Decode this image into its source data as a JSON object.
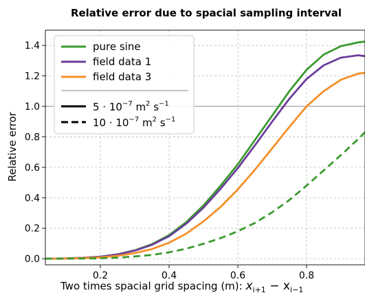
{
  "chart_data": {
    "type": "line",
    "title": "Relative error due to spacial sampling interval",
    "xlabel": "Two times spacial grid spacing (m):  ",
    "xlabel_math": "x",
    "xlabel_sub1": "i+1",
    "xlabel_minus": " − x",
    "xlabel_sub2": "i−1",
    "ylabel": "Relative error",
    "xlim": [
      0.04,
      0.97
    ],
    "ylim": [
      -0.04,
      1.5
    ],
    "xticks": [
      0.2,
      0.4,
      0.6,
      0.8
    ],
    "xtick_labels": [
      "0.2",
      "0.4",
      "0.6",
      "0.8"
    ],
    "yticks": [
      0.0,
      0.2,
      0.4,
      0.6,
      0.8,
      1.0,
      1.2,
      1.4
    ],
    "ytick_labels": [
      "0.0",
      "0.2",
      "0.4",
      "0.6",
      "0.8",
      "1.0",
      "1.2",
      "1.4"
    ],
    "grid": true,
    "hline": 1.0,
    "legend_position": "top-left",
    "legend": {
      "series_names": [
        "pure sine",
        "field data 1",
        "field data 3"
      ],
      "style_label_solid": "5 · 10",
      "style_label_dashed": "10 · 10",
      "exponent": "−7",
      "units": " m",
      "units_exp_m": "2",
      "units_s": " s",
      "units_exp_s": "−1"
    },
    "series": [
      {
        "name": "pure sine",
        "color": "#3a9a2e",
        "dash": "solid",
        "x": [
          0.04,
          0.1,
          0.15,
          0.2,
          0.25,
          0.3,
          0.35,
          0.4,
          0.45,
          0.5,
          0.55,
          0.6,
          0.65,
          0.7,
          0.75,
          0.8,
          0.85,
          0.9,
          0.95,
          0.97
        ],
        "y": [
          0.0,
          0.002,
          0.006,
          0.013,
          0.029,
          0.055,
          0.095,
          0.155,
          0.24,
          0.35,
          0.48,
          0.62,
          0.78,
          0.94,
          1.1,
          1.24,
          1.34,
          1.395,
          1.42,
          1.425
        ]
      },
      {
        "name": "field data 1",
        "color": "#6a3d9a",
        "dash": "solid",
        "x": [
          0.04,
          0.1,
          0.15,
          0.2,
          0.25,
          0.3,
          0.35,
          0.4,
          0.45,
          0.5,
          0.55,
          0.6,
          0.65,
          0.7,
          0.75,
          0.8,
          0.85,
          0.9,
          0.95,
          0.97
        ],
        "y": [
          0.0,
          0.002,
          0.006,
          0.013,
          0.028,
          0.053,
          0.091,
          0.148,
          0.23,
          0.335,
          0.46,
          0.595,
          0.745,
          0.9,
          1.05,
          1.18,
          1.27,
          1.32,
          1.335,
          1.33
        ]
      },
      {
        "name": "field data 3",
        "color": "#f58f29",
        "dash": "solid",
        "x": [
          0.04,
          0.1,
          0.15,
          0.2,
          0.25,
          0.3,
          0.35,
          0.4,
          0.45,
          0.5,
          0.55,
          0.6,
          0.65,
          0.7,
          0.75,
          0.8,
          0.85,
          0.9,
          0.95,
          0.97
        ],
        "y": [
          0.0,
          0.001,
          0.004,
          0.009,
          0.019,
          0.037,
          0.063,
          0.105,
          0.165,
          0.245,
          0.34,
          0.455,
          0.585,
          0.725,
          0.865,
          1.0,
          1.1,
          1.175,
          1.215,
          1.22
        ]
      },
      {
        "name": "pure sine (10 · 10⁻⁷)",
        "color": "#3a9a2e",
        "dash": "dashed",
        "x": [
          0.04,
          0.1,
          0.15,
          0.2,
          0.25,
          0.3,
          0.35,
          0.4,
          0.45,
          0.5,
          0.55,
          0.6,
          0.65,
          0.7,
          0.75,
          0.8,
          0.85,
          0.9,
          0.95,
          0.97
        ],
        "y": [
          0.0,
          0.0006,
          0.0015,
          0.003,
          0.007,
          0.015,
          0.025,
          0.042,
          0.066,
          0.098,
          0.135,
          0.18,
          0.235,
          0.305,
          0.385,
          0.48,
          0.58,
          0.68,
          0.785,
          0.83
        ]
      }
    ]
  }
}
